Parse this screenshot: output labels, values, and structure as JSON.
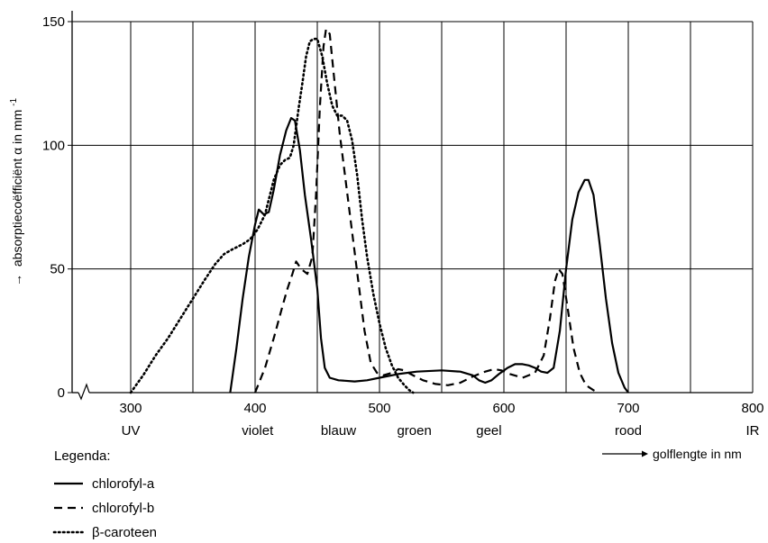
{
  "chart_data": {
    "type": "line",
    "ylabel_arrow": "→",
    "ylabel": "absorptiecoëfficiënt α in mm",
    "ylabel_exp": "-1",
    "xlabel_arrow": "→",
    "xlabel": "golflengte in nm",
    "xlim": [
      250,
      800
    ],
    "ylim": [
      0,
      150
    ],
    "x_ticks": [
      300,
      400,
      500,
      600,
      700,
      800
    ],
    "x_tick_labels": [
      "300",
      "400",
      "500",
      "600",
      "700",
      "800"
    ],
    "y_ticks": [
      0,
      50,
      100,
      150
    ],
    "y_tick_labels": [
      "0",
      "50",
      "100",
      "150"
    ],
    "x_gridlines": [
      300,
      350,
      400,
      450,
      500,
      550,
      600,
      650,
      700,
      750
    ],
    "y_gridlines": [
      50,
      100,
      150
    ],
    "grid": true,
    "axis_break": true,
    "band_labels": [
      {
        "text": "UV",
        "x": 300
      },
      {
        "text": "violet",
        "x": 402
      },
      {
        "text": "blauw",
        "x": 467
      },
      {
        "text": "groen",
        "x": 528
      },
      {
        "text": "geel",
        "x": 588
      },
      {
        "text": "rood",
        "x": 700
      },
      {
        "text": "IR",
        "x": 800
      }
    ],
    "legend_title": "Legenda:",
    "legend_position": "bottom-left",
    "series": [
      {
        "name": "chlorofyl-a",
        "style": "solid",
        "points": [
          [
            380,
            0
          ],
          [
            385,
            18
          ],
          [
            390,
            38
          ],
          [
            395,
            55
          ],
          [
            400,
            68
          ],
          [
            403,
            74
          ],
          [
            407,
            72
          ],
          [
            411,
            73
          ],
          [
            415,
            82
          ],
          [
            420,
            96
          ],
          [
            425,
            106
          ],
          [
            429,
            111
          ],
          [
            432,
            110
          ],
          [
            436,
            98
          ],
          [
            440,
            80
          ],
          [
            445,
            62
          ],
          [
            450,
            42
          ],
          [
            453,
            22
          ],
          [
            456,
            10
          ],
          [
            460,
            6
          ],
          [
            467,
            5
          ],
          [
            480,
            4.5
          ],
          [
            490,
            5
          ],
          [
            500,
            6
          ],
          [
            515,
            7.5
          ],
          [
            530,
            8.5
          ],
          [
            550,
            9
          ],
          [
            565,
            8.5
          ],
          [
            575,
            7
          ],
          [
            580,
            5
          ],
          [
            585,
            4
          ],
          [
            590,
            5
          ],
          [
            596,
            7.5
          ],
          [
            603,
            10
          ],
          [
            609,
            11.5
          ],
          [
            615,
            11.5
          ],
          [
            620,
            11
          ],
          [
            625,
            10
          ],
          [
            630,
            8.5
          ],
          [
            635,
            8
          ],
          [
            640,
            10
          ],
          [
            645,
            25
          ],
          [
            650,
            50
          ],
          [
            655,
            70
          ],
          [
            660,
            81
          ],
          [
            665,
            86
          ],
          [
            668,
            86
          ],
          [
            672,
            80
          ],
          [
            677,
            60
          ],
          [
            682,
            38
          ],
          [
            687,
            20
          ],
          [
            692,
            8
          ],
          [
            697,
            2
          ],
          [
            700,
            0
          ]
        ]
      },
      {
        "name": "chlorofyl-b",
        "style": "dashed",
        "points": [
          [
            400,
            0
          ],
          [
            408,
            10
          ],
          [
            415,
            22
          ],
          [
            422,
            35
          ],
          [
            426,
            42
          ],
          [
            430,
            48
          ],
          [
            433,
            53
          ],
          [
            437,
            50
          ],
          [
            442,
            48
          ],
          [
            446,
            55
          ],
          [
            449,
            80
          ],
          [
            452,
            115
          ],
          [
            455,
            140
          ],
          [
            457,
            147
          ],
          [
            460,
            145
          ],
          [
            463,
            130
          ],
          [
            468,
            105
          ],
          [
            473,
            85
          ],
          [
            478,
            65
          ],
          [
            483,
            45
          ],
          [
            488,
            25
          ],
          [
            493,
            12
          ],
          [
            498,
            8
          ],
          [
            503,
            7
          ],
          [
            510,
            8
          ],
          [
            515,
            9.5
          ],
          [
            520,
            9
          ],
          [
            525,
            7.5
          ],
          [
            535,
            5
          ],
          [
            545,
            3.5
          ],
          [
            555,
            3
          ],
          [
            565,
            4
          ],
          [
            575,
            6.5
          ],
          [
            585,
            8.5
          ],
          [
            592,
            9.5
          ],
          [
            598,
            9
          ],
          [
            605,
            7.5
          ],
          [
            615,
            6
          ],
          [
            625,
            8
          ],
          [
            632,
            15
          ],
          [
            637,
            30
          ],
          [
            641,
            45
          ],
          [
            644,
            50
          ],
          [
            647,
            48
          ],
          [
            651,
            35
          ],
          [
            656,
            18
          ],
          [
            661,
            8
          ],
          [
            666,
            3
          ],
          [
            672,
            1
          ],
          [
            676,
            0
          ]
        ]
      },
      {
        "name": "β-caroteen",
        "style": "dotted",
        "points": [
          [
            300,
            0
          ],
          [
            310,
            7
          ],
          [
            320,
            15
          ],
          [
            330,
            22
          ],
          [
            340,
            30
          ],
          [
            350,
            38
          ],
          [
            360,
            46
          ],
          [
            368,
            52
          ],
          [
            375,
            56
          ],
          [
            382,
            58
          ],
          [
            390,
            60
          ],
          [
            396,
            62
          ],
          [
            402,
            66
          ],
          [
            408,
            72
          ],
          [
            415,
            86
          ],
          [
            420,
            92
          ],
          [
            424,
            94
          ],
          [
            428,
            95
          ],
          [
            431,
            100
          ],
          [
            435,
            115
          ],
          [
            438,
            125
          ],
          [
            441,
            136
          ],
          [
            444,
            142
          ],
          [
            447,
            143
          ],
          [
            450,
            143
          ],
          [
            454,
            136
          ],
          [
            458,
            125
          ],
          [
            462,
            116
          ],
          [
            466,
            112
          ],
          [
            470,
            112
          ],
          [
            474,
            110
          ],
          [
            478,
            102
          ],
          [
            482,
            88
          ],
          [
            486,
            70
          ],
          [
            490,
            55
          ],
          [
            495,
            40
          ],
          [
            500,
            28
          ],
          [
            505,
            18
          ],
          [
            510,
            11
          ],
          [
            515,
            6
          ],
          [
            520,
            3
          ],
          [
            524,
            1
          ],
          [
            527,
            0
          ]
        ]
      }
    ]
  }
}
